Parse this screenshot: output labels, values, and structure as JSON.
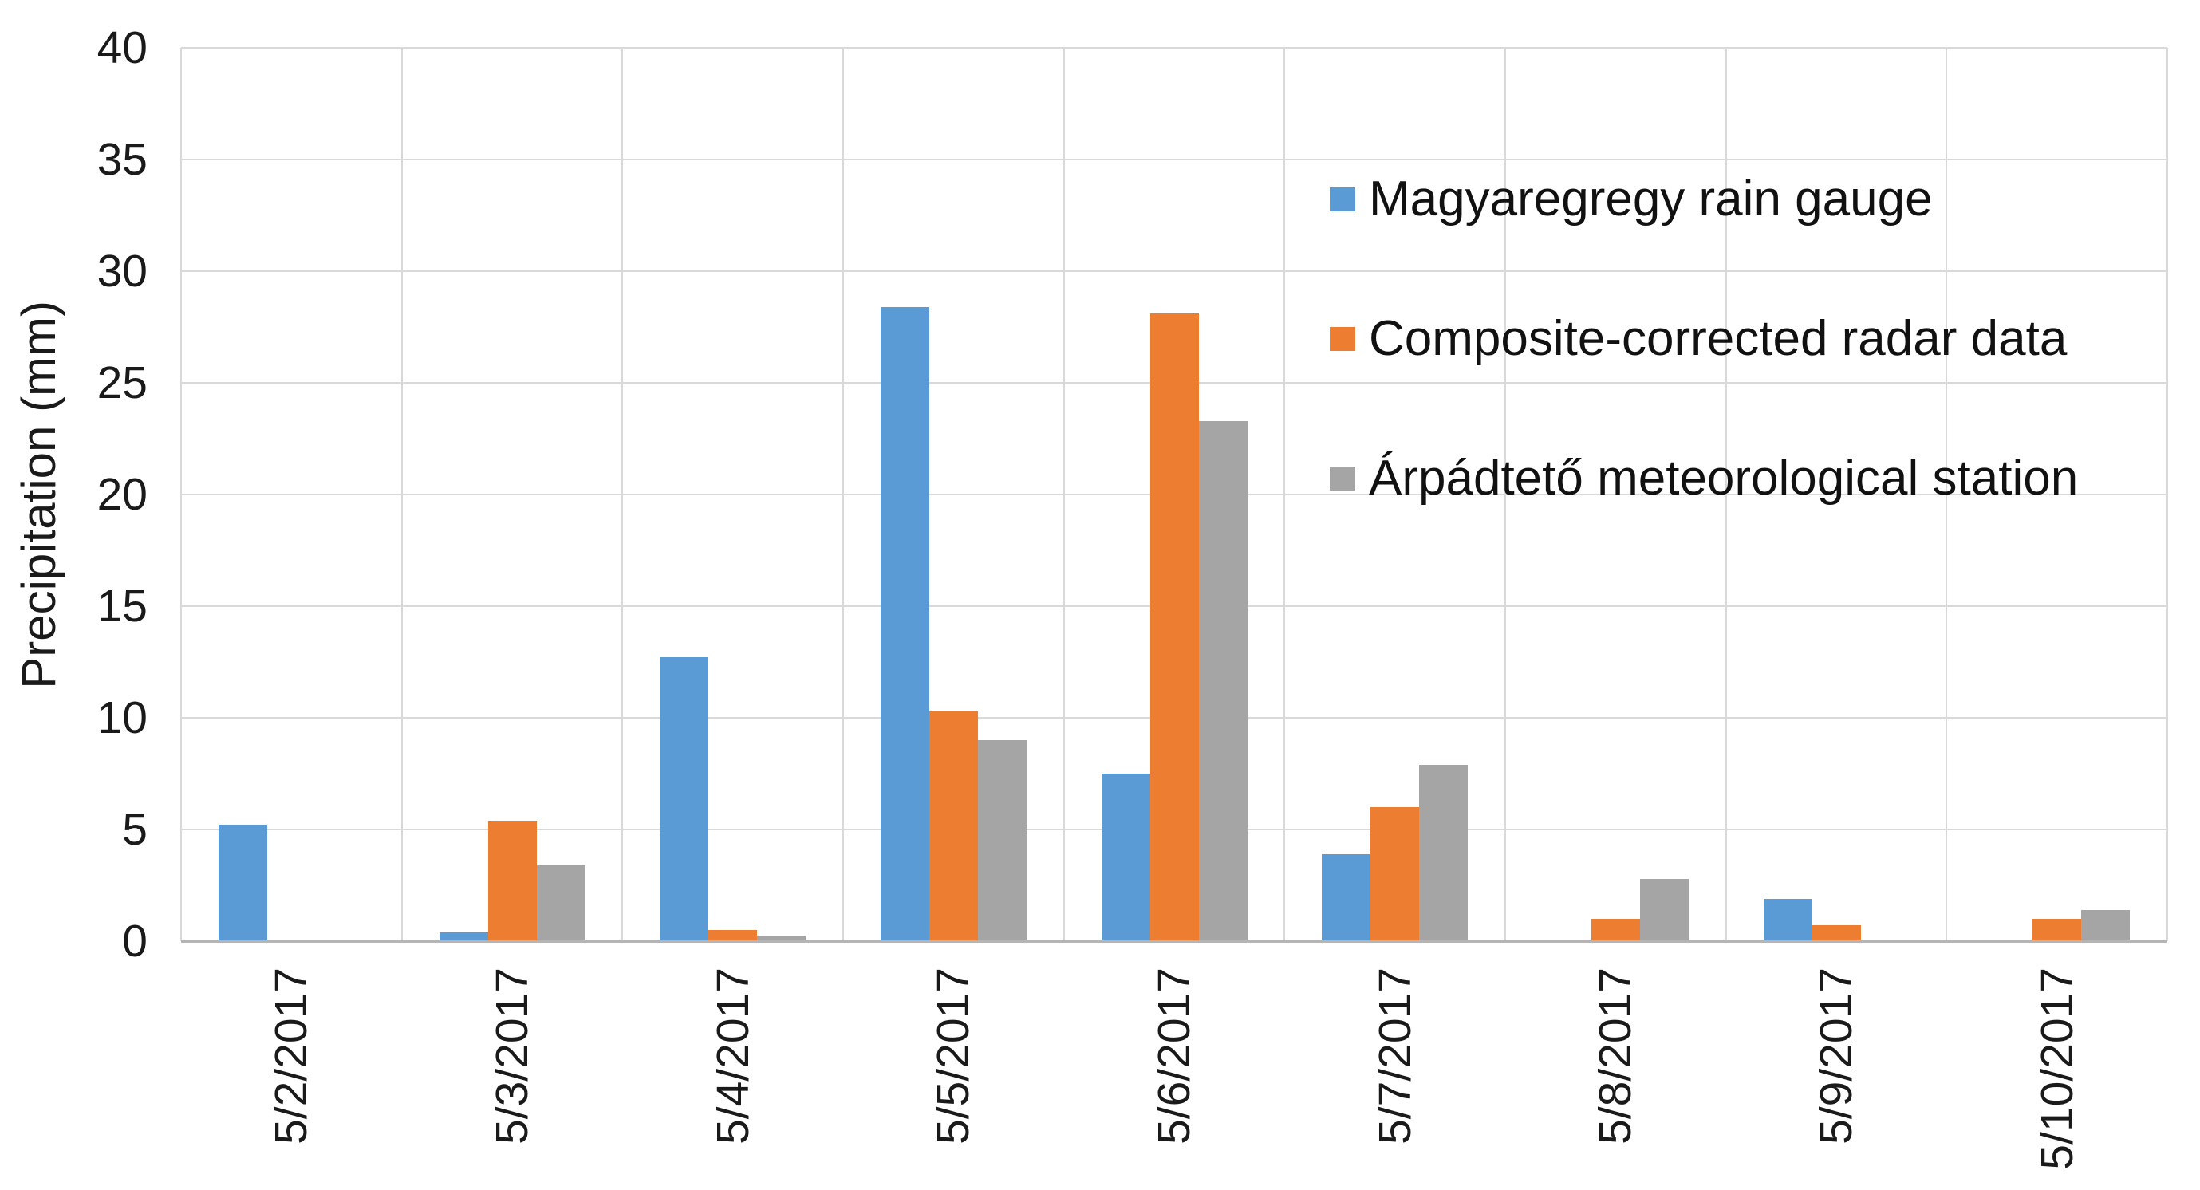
{
  "chart_data": {
    "type": "bar",
    "title": "",
    "xlabel": "",
    "ylabel": "Precipitation (mm)",
    "ylim": [
      0,
      40
    ],
    "yticks": [
      0,
      5,
      10,
      15,
      20,
      25,
      30,
      35,
      40
    ],
    "grid": true,
    "legend_position": "upper-right-inside",
    "categories": [
      "5/2/2017",
      "5/3/2017",
      "5/4/2017",
      "5/5/2017",
      "5/6/2017",
      "5/7/2017",
      "5/8/2017",
      "5/9/2017",
      "5/10/2017"
    ],
    "series": [
      {
        "name": "Magyaregregy rain gauge",
        "color": "#5B9BD5",
        "values": [
          5.2,
          0.4,
          12.7,
          28.4,
          7.5,
          3.9,
          0,
          1.9,
          0
        ]
      },
      {
        "name": "Composite-corrected radar data",
        "color": "#ED7D31",
        "values": [
          0,
          5.4,
          0.5,
          10.3,
          28.1,
          6.0,
          1.0,
          0.7,
          1.0
        ]
      },
      {
        "name": "Árpádtető meteorological station",
        "color": "#A5A5A5",
        "values": [
          0,
          3.4,
          0.2,
          9.0,
          23.3,
          7.9,
          2.8,
          0,
          1.4
        ]
      }
    ],
    "colors": {
      "gridline": "#D9D9D9",
      "axis_line": "#B5B5B5",
      "tick_text": "#1A1A1A"
    }
  }
}
